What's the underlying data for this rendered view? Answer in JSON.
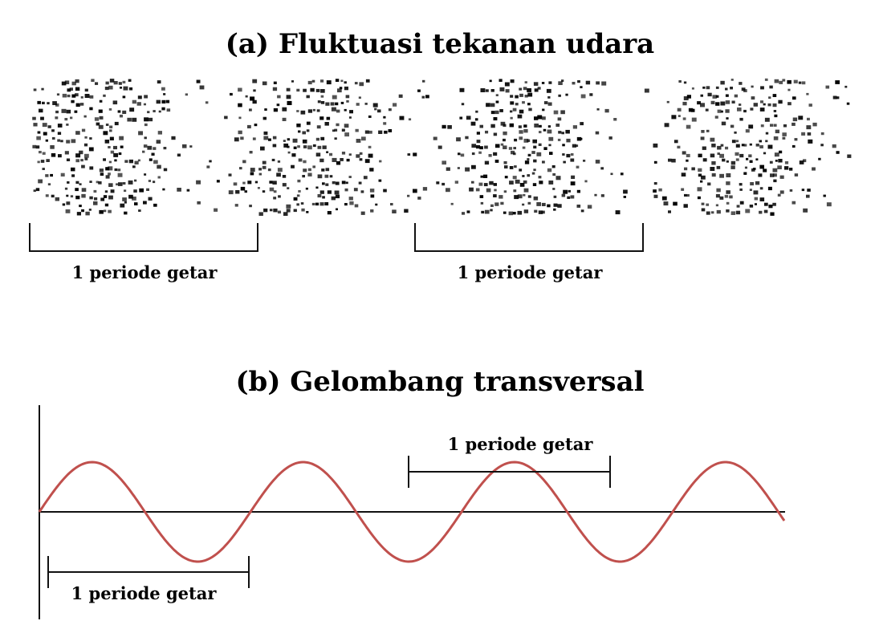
{
  "panel_a": {
    "title": "(a) Fluktuasi tekanan udara",
    "period_labels": [
      "1 periode getar",
      "1 periode getar"
    ]
  },
  "panel_b": {
    "title": "(b) Gelombang transversal",
    "period_labels": [
      "1 periode getar",
      "1 periode getar"
    ],
    "wave_color": "#c0504d",
    "cycles_shown": 3.6
  },
  "colors": {
    "ink": "#111111",
    "particle": "#000000"
  }
}
